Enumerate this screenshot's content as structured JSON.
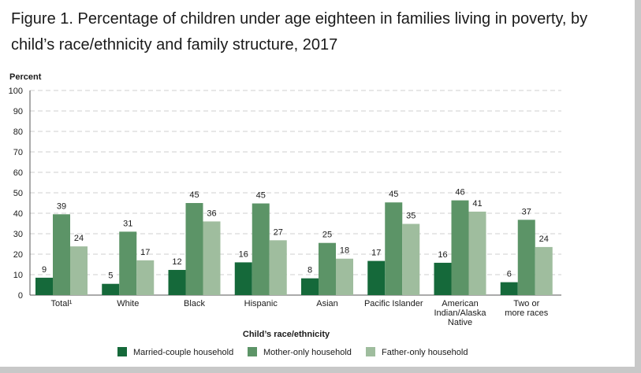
{
  "title": "Figure 1. Percentage of children under age eighteen in families living in poverty, by child’s race/ethnicity and family structure, 2017",
  "chart_data": {
    "type": "bar",
    "title": "Figure 1. Percentage of children under age eighteen in families living in poverty, by child’s race/ethnicity and family structure, 2017",
    "xlabel": "Child’s race/ethnicity",
    "ylabel": "Percent",
    "ylim": [
      0,
      100
    ],
    "yticks": [
      0,
      10,
      20,
      30,
      40,
      50,
      60,
      70,
      80,
      90,
      100
    ],
    "grid": true,
    "legend_position": "bottom",
    "categories": [
      [
        "Total¹"
      ],
      [
        "White"
      ],
      [
        "Black"
      ],
      [
        "Hispanic"
      ],
      [
        "Asian"
      ],
      [
        "Pacific Islander"
      ],
      [
        "American",
        "Indian/Alaska",
        "Native"
      ],
      [
        "Two or",
        "more races"
      ]
    ],
    "series": [
      {
        "name": "Married-couple household",
        "color": "#15693a",
        "values": [
          9,
          5,
          12,
          16,
          8,
          17,
          16,
          6
        ]
      },
      {
        "name": "Mother-only household",
        "color": "#5c9467",
        "values": [
          39,
          31,
          45,
          45,
          25,
          45,
          46,
          37
        ]
      },
      {
        "name": "Father-only household",
        "color": "#9fbd9e",
        "values": [
          24,
          17,
          36,
          27,
          18,
          35,
          41,
          24
        ]
      }
    ],
    "bar_values": [
      [
        8.5,
        5.5,
        12.3,
        16,
        8.2,
        16.7,
        15.8,
        6.3
      ],
      [
        39.5,
        31,
        45,
        44.8,
        25.5,
        45.3,
        46.3,
        36.8
      ],
      [
        23.8,
        17,
        36,
        26.8,
        17.8,
        34.8,
        40.8,
        23.5
      ]
    ]
  }
}
